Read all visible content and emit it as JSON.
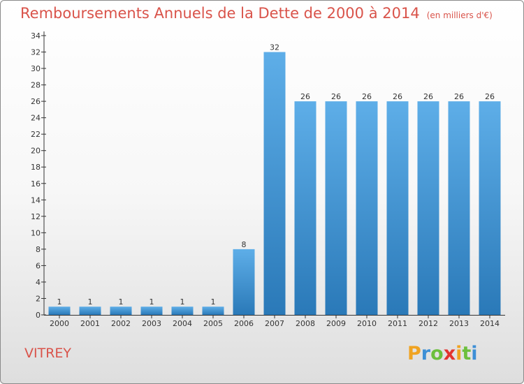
{
  "chart_data": {
    "type": "bar",
    "title": "Remboursements Annuels de la Dette de 2000 à 2014",
    "unit_note": "(en milliers d'€)",
    "categories": [
      "2000",
      "2001",
      "2002",
      "2003",
      "2004",
      "2005",
      "2006",
      "2007",
      "2008",
      "2009",
      "2010",
      "2011",
      "2012",
      "2013",
      "2014"
    ],
    "values": [
      1,
      1,
      1,
      1,
      1,
      1,
      8,
      32,
      26,
      26,
      26,
      26,
      26,
      26,
      26
    ],
    "ylim": [
      0,
      34
    ],
    "yticks": [
      0,
      2,
      4,
      6,
      8,
      10,
      12,
      14,
      16,
      18,
      20,
      22,
      24,
      26,
      28,
      30,
      32,
      34
    ],
    "xlabel": "",
    "ylabel": "",
    "grid": false,
    "bar_color_top": "#5eaee8",
    "bar_color_bottom": "#2a79b8"
  },
  "place_name": "VITREY",
  "logo": {
    "letters": [
      "P",
      "r",
      "o",
      "x",
      "i",
      "t",
      "i"
    ],
    "colors": [
      "#f0a321",
      "#3d8fd6",
      "#6cbf3c",
      "#e3342f",
      "#f0a321",
      "#6cbf3c",
      "#3d8fd6"
    ]
  }
}
